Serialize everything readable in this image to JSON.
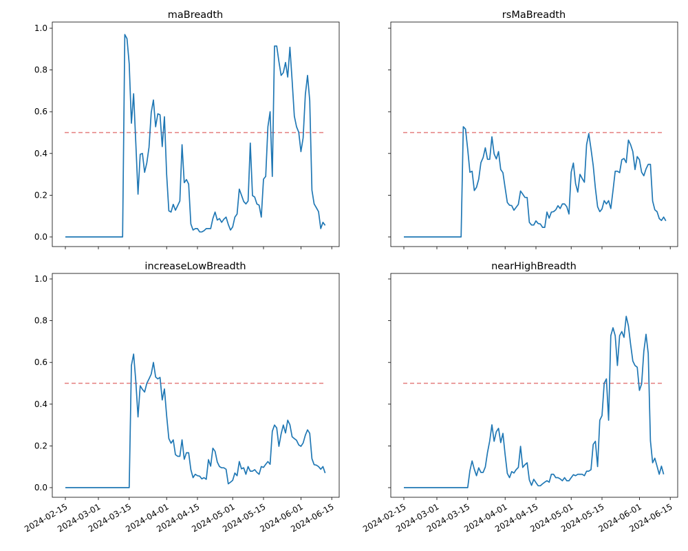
{
  "chart_data": [
    {
      "type": "line",
      "title": "maBreadth",
      "ylim": [
        -0.05,
        1.02
      ],
      "yticks": [
        "0.0",
        "0.2",
        "0.4",
        "0.6",
        "0.8",
        "1.0"
      ],
      "threshold": 0.5,
      "series_key": "maBreadth",
      "show_xticklabels": false,
      "show_yticklabels": true
    },
    {
      "type": "line",
      "title": "rsMaBreadth",
      "ylim": [
        -0.05,
        1.02
      ],
      "yticks": [
        "0.0",
        "0.2",
        "0.4",
        "0.6",
        "0.8",
        "1.0"
      ],
      "threshold": 0.5,
      "series_key": "rsMaBreadth",
      "show_xticklabels": false,
      "show_yticklabels": false
    },
    {
      "type": "line",
      "title": "increaseLowBreadth",
      "ylim": [
        -0.05,
        1.02
      ],
      "yticks": [
        "0.0",
        "0.2",
        "0.4",
        "0.6",
        "0.8",
        "1.0"
      ],
      "threshold": 0.5,
      "series_key": "increaseLowBreadth",
      "show_xticklabels": true,
      "show_yticklabels": true
    },
    {
      "type": "line",
      "title": "nearHighBreadth",
      "ylim": [
        -0.05,
        1.02
      ],
      "yticks": [
        "0.0",
        "0.2",
        "0.4",
        "0.6",
        "0.8",
        "1.0"
      ],
      "threshold": 0.5,
      "series_key": "nearHighBreadth",
      "show_xticklabels": true,
      "show_yticklabels": false
    }
  ],
  "xticks": [
    "2024-02-15",
    "2024-03-01",
    "2024-03-15",
    "2024-04-01",
    "2024-04-15",
    "2024-05-01",
    "2024-05-15",
    "2024-06-01",
    "2024-06-15"
  ],
  "colors": {
    "line": "#1f77b4",
    "threshold": "#e06666"
  },
  "dates": [
    "2024-02-15",
    "2024-02-16",
    "2024-02-17",
    "2024-02-18",
    "2024-02-19",
    "2024-02-20",
    "2024-02-21",
    "2024-02-22",
    "2024-02-23",
    "2024-02-24",
    "2024-02-25",
    "2024-02-26",
    "2024-02-27",
    "2024-02-28",
    "2024-02-29",
    "2024-03-01",
    "2024-03-02",
    "2024-03-03",
    "2024-03-04",
    "2024-03-05",
    "2024-03-06",
    "2024-03-07",
    "2024-03-08",
    "2024-03-09",
    "2024-03-10",
    "2024-03-11",
    "2024-03-12",
    "2024-03-13",
    "2024-03-14",
    "2024-03-15",
    "2024-03-16",
    "2024-03-17",
    "2024-03-18",
    "2024-03-19",
    "2024-03-20",
    "2024-03-21",
    "2024-03-22",
    "2024-03-23",
    "2024-03-24",
    "2024-03-25",
    "2024-03-26",
    "2024-03-27",
    "2024-03-28",
    "2024-03-29",
    "2024-03-30",
    "2024-03-31",
    "2024-04-01",
    "2024-04-02",
    "2024-04-03",
    "2024-04-04",
    "2024-04-05",
    "2024-04-06",
    "2024-04-07",
    "2024-04-08",
    "2024-04-09",
    "2024-04-10",
    "2024-04-11",
    "2024-04-12",
    "2024-04-13",
    "2024-04-14",
    "2024-04-15",
    "2024-04-16",
    "2024-04-17",
    "2024-04-18",
    "2024-04-19",
    "2024-04-20",
    "2024-04-21",
    "2024-04-22",
    "2024-04-23",
    "2024-04-24",
    "2024-04-25",
    "2024-04-26",
    "2024-04-27",
    "2024-04-28",
    "2024-04-29",
    "2024-04-30",
    "2024-05-01",
    "2024-05-02",
    "2024-05-03",
    "2024-05-04",
    "2024-05-05",
    "2024-05-06",
    "2024-05-07",
    "2024-05-08",
    "2024-05-09",
    "2024-05-10",
    "2024-05-11",
    "2024-05-12",
    "2024-05-13",
    "2024-05-14",
    "2024-05-15",
    "2024-05-16",
    "2024-05-17",
    "2024-05-18",
    "2024-05-19",
    "2024-05-20",
    "2024-05-21",
    "2024-05-22",
    "2024-05-23",
    "2024-05-24",
    "2024-05-25",
    "2024-05-26",
    "2024-05-27",
    "2024-05-28",
    "2024-05-29",
    "2024-05-30",
    "2024-05-31",
    "2024-06-01",
    "2024-06-02",
    "2024-06-03",
    "2024-06-04",
    "2024-06-05",
    "2024-06-06",
    "2024-06-07",
    "2024-06-08",
    "2024-06-09",
    "2024-06-10",
    "2024-06-11",
    "2024-06-12",
    "2024-06-13"
  ],
  "series": {
    "maBreadth": [
      0,
      0,
      0,
      0,
      0,
      0,
      0,
      0,
      0,
      0,
      0,
      0,
      0,
      0,
      0,
      0,
      0,
      0,
      0,
      0,
      0,
      0,
      0,
      0,
      0,
      0,
      0,
      0.97,
      0.95,
      0.83,
      0.545,
      0.686,
      0.45,
      0.205,
      0.396,
      0.4,
      0.31,
      0.355,
      0.43,
      0.596,
      0.656,
      0.528,
      0.59,
      0.585,
      0.433,
      0.576,
      0.3,
      0.125,
      0.119,
      0.156,
      0.128,
      0.15,
      0.172,
      0.442,
      0.26,
      0.275,
      0.253,
      0.062,
      0.033,
      0.04,
      0.04,
      0.024,
      0.024,
      0.03,
      0.04,
      0.04,
      0.04,
      0.088,
      0.119,
      0.081,
      0.088,
      0.07,
      0.085,
      0.095,
      0.06,
      0.033,
      0.048,
      0.095,
      0.11,
      0.229,
      0.2,
      0.17,
      0.158,
      0.172,
      0.45,
      0.198,
      0.191,
      0.158,
      0.152,
      0.095,
      0.277,
      0.29,
      0.528,
      0.6,
      0.29,
      0.915,
      0.915,
      0.84,
      0.774,
      0.787,
      0.836,
      0.766,
      0.909,
      0.75,
      0.579,
      0.528,
      0.502,
      0.409,
      0.475,
      0.682,
      0.774,
      0.653,
      0.224,
      0.158,
      0.14,
      0.121,
      0.04,
      0.07,
      0.055,
      null
    ],
    "rsMaBreadth": [
      0,
      0,
      0,
      0,
      0,
      0,
      0,
      0,
      0,
      0,
      0,
      0,
      0,
      0,
      0,
      0,
      0,
      0,
      0,
      0,
      0,
      0,
      0,
      0,
      0,
      0,
      0,
      0.528,
      0.517,
      0.42,
      0.31,
      0.315,
      0.222,
      0.238,
      0.277,
      0.356,
      0.38,
      0.427,
      0.372,
      0.372,
      0.48,
      0.398,
      0.374,
      0.409,
      0.323,
      0.308,
      0.235,
      0.165,
      0.152,
      0.15,
      0.128,
      0.142,
      0.156,
      0.22,
      0.205,
      0.189,
      0.189,
      0.07,
      0.057,
      0.057,
      0.077,
      0.064,
      0.062,
      0.046,
      0.046,
      0.119,
      0.09,
      0.119,
      0.121,
      0.13,
      0.15,
      0.136,
      0.158,
      0.158,
      0.145,
      0.11,
      0.31,
      0.354,
      0.255,
      0.215,
      0.3,
      0.28,
      0.262,
      0.442,
      0.495,
      0.422,
      0.343,
      0.233,
      0.145,
      0.121,
      0.134,
      0.174,
      0.158,
      0.174,
      0.136,
      0.222,
      0.315,
      0.315,
      0.308,
      0.37,
      0.376,
      0.356,
      0.464,
      0.442,
      0.409,
      0.323,
      0.385,
      0.37,
      0.31,
      0.293,
      0.326,
      0.348,
      0.348,
      0.172,
      0.13,
      0.121,
      0.088,
      0.079,
      0.095,
      0.077
    ],
    "increaseLowBreadth": [
      0,
      0,
      0,
      0,
      0,
      0,
      0,
      0,
      0,
      0,
      0,
      0,
      0,
      0,
      0,
      0,
      0,
      0,
      0,
      0,
      0,
      0,
      0,
      0,
      0,
      0,
      0,
      0,
      0,
      0,
      0.585,
      0.64,
      0.51,
      0.339,
      0.488,
      0.471,
      0.458,
      0.5,
      0.521,
      0.544,
      0.6,
      0.53,
      0.521,
      0.528,
      0.42,
      0.473,
      0.345,
      0.235,
      0.213,
      0.229,
      0.158,
      0.15,
      0.15,
      0.229,
      0.136,
      0.167,
      0.167,
      0.086,
      0.048,
      0.064,
      0.057,
      0.055,
      0.042,
      0.048,
      0.04,
      0.134,
      0.103,
      0.189,
      0.174,
      0.123,
      0.101,
      0.095,
      0.095,
      0.088,
      0.018,
      0.026,
      0.035,
      0.07,
      0.057,
      0.125,
      0.09,
      0.095,
      0.064,
      0.101,
      0.079,
      0.079,
      0.086,
      0.073,
      0.064,
      0.101,
      0.097,
      0.112,
      0.125,
      0.112,
      0.27,
      0.3,
      0.286,
      0.198,
      0.257,
      0.3,
      0.262,
      0.323,
      0.301,
      0.244,
      0.235,
      0.227,
      0.205,
      0.198,
      0.214,
      0.251,
      0.277,
      0.26,
      0.139,
      0.11,
      0.108,
      0.101,
      0.088,
      0.101,
      0.07,
      null
    ],
    "nearHighBreadth": [
      0,
      0,
      0,
      0,
      0,
      0,
      0,
      0,
      0,
      0,
      0,
      0,
      0,
      0,
      0,
      0,
      0,
      0,
      0,
      0,
      0,
      0,
      0,
      0,
      0,
      0,
      0,
      0,
      0,
      0,
      0.081,
      0.128,
      0.088,
      0.057,
      0.095,
      0.073,
      0.073,
      0.099,
      0.169,
      0.224,
      0.301,
      0.222,
      0.268,
      0.284,
      0.216,
      0.26,
      0.158,
      0.068,
      0.048,
      0.077,
      0.07,
      0.086,
      0.097,
      0.198,
      0.097,
      0.11,
      0.119,
      0.037,
      0.011,
      0.04,
      0.024,
      0.009,
      0.009,
      0.018,
      0.026,
      0.033,
      0.026,
      0.064,
      0.064,
      0.048,
      0.048,
      0.042,
      0.033,
      0.048,
      0.033,
      0.033,
      0.048,
      0.062,
      0.057,
      0.064,
      0.064,
      0.064,
      0.057,
      0.079,
      0.079,
      0.086,
      0.207,
      0.222,
      0.101,
      0.323,
      0.345,
      0.5,
      0.521,
      0.323,
      0.728,
      0.766,
      0.728,
      0.585,
      0.728,
      0.748,
      0.72,
      0.821,
      0.775,
      0.686,
      0.607,
      0.585,
      0.577,
      0.466,
      0.497,
      0.653,
      0.735,
      0.643,
      0.224,
      0.119,
      0.141,
      0.103,
      0.064,
      0.103,
      0.064,
      null
    ]
  }
}
